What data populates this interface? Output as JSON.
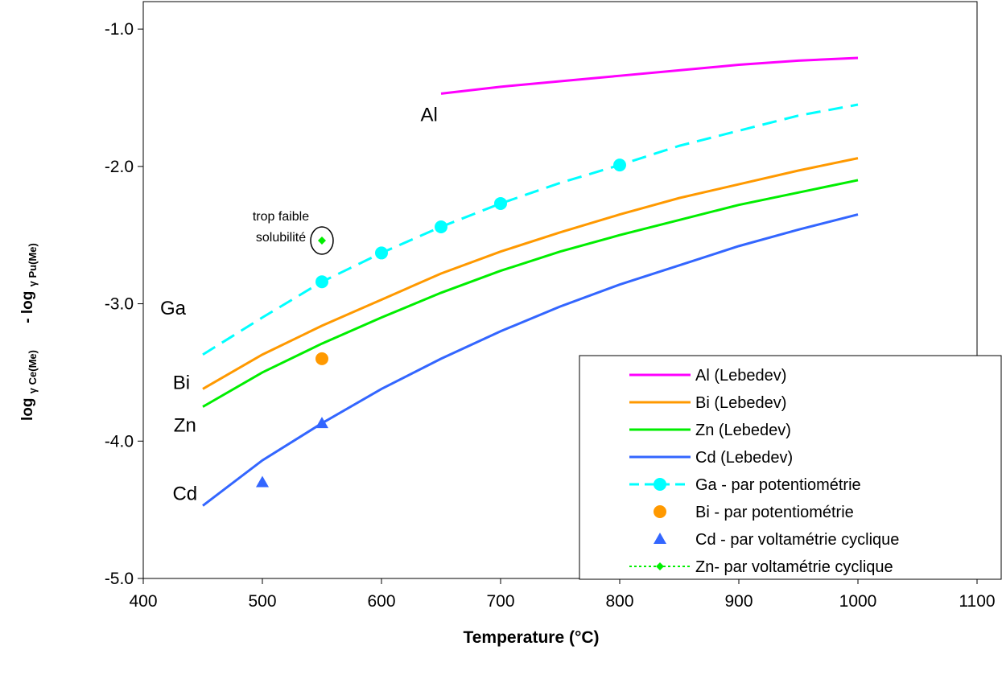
{
  "chart_data": {
    "type": "line",
    "xlabel": "Temperature (°C)",
    "ylabel": {
      "part1_main": "log",
      "part1_sub": "γ Ce(Me)",
      "part2_main": "- log",
      "part2_sub": "γ Pu(Me)"
    },
    "xlim": [
      400,
      1100
    ],
    "ylim": [
      -5.0,
      -0.8
    ],
    "x_ticks": [
      400,
      500,
      600,
      700,
      800,
      900,
      1000,
      1100
    ],
    "x_tick_labels": [
      "400",
      "500",
      "600",
      "700",
      "800",
      "900",
      "1000",
      "1100"
    ],
    "y_ticks": [
      -5.0,
      -4.0,
      -3.0,
      -2.0,
      -1.0
    ],
    "y_tick_labels": [
      "-5.0",
      "-4.0",
      "-3.0",
      "-2.0",
      "-1.0"
    ],
    "grid": false,
    "legend_position": "bottom-right",
    "series": [
      {
        "name": "Al (Lebedev)",
        "color": "#ff00ff",
        "style": "line",
        "x": [
          650,
          700,
          750,
          800,
          850,
          900,
          950,
          1000
        ],
        "y": [
          -1.47,
          -1.42,
          -1.38,
          -1.34,
          -1.3,
          -1.26,
          -1.23,
          -1.21
        ]
      },
      {
        "name": "Bi (Lebedev)",
        "color": "#ff9900",
        "style": "line",
        "x": [
          450,
          500,
          550,
          600,
          650,
          700,
          750,
          800,
          850,
          900,
          950,
          1000
        ],
        "y": [
          -3.62,
          -3.37,
          -3.16,
          -2.97,
          -2.78,
          -2.62,
          -2.48,
          -2.35,
          -2.23,
          -2.13,
          -2.03,
          -1.94
        ]
      },
      {
        "name": "Zn (Lebedev)",
        "color": "#00ee00",
        "style": "line",
        "x": [
          450,
          500,
          550,
          600,
          650,
          700,
          750,
          800,
          850,
          900,
          950,
          1000
        ],
        "y": [
          -3.75,
          -3.5,
          -3.29,
          -3.1,
          -2.92,
          -2.76,
          -2.62,
          -2.5,
          -2.39,
          -2.28,
          -2.19,
          -2.1
        ]
      },
      {
        "name": "Cd (Lebedev)",
        "color": "#3366ff",
        "style": "line",
        "x": [
          450,
          500,
          550,
          600,
          650,
          700,
          750,
          800,
          850,
          900,
          950,
          1000
        ],
        "y": [
          -4.47,
          -4.14,
          -3.87,
          -3.62,
          -3.4,
          -3.2,
          -3.02,
          -2.86,
          -2.72,
          -2.58,
          -2.46,
          -2.35
        ]
      },
      {
        "name": "Ga - par potentiométrie",
        "color": "#00ffff",
        "style": "dashed-line-markers",
        "marker": "circle",
        "x": [
          450,
          500,
          550,
          600,
          650,
          700,
          750,
          800,
          850,
          900,
          950,
          1000
        ],
        "y": [
          -3.37,
          -3.1,
          -2.84,
          -2.63,
          -2.44,
          -2.27,
          -2.12,
          -1.99,
          -1.85,
          -1.74,
          -1.63,
          -1.55
        ],
        "marker_x": [
          550,
          600,
          650,
          700,
          800
        ],
        "marker_y": [
          -2.84,
          -2.63,
          -2.44,
          -2.27,
          -1.99
        ]
      },
      {
        "name": "Bi - par potentiométrie",
        "color": "#ff9900",
        "style": "markers",
        "marker": "circle",
        "x": [
          550
        ],
        "y": [
          -3.4
        ]
      },
      {
        "name": "Cd - par voltamétrie cyclique",
        "color": "#3366ff",
        "style": "markers",
        "marker": "triangle",
        "x": [
          500,
          550
        ],
        "y": [
          -4.3,
          -3.87
        ]
      },
      {
        "name": "Zn- par voltamétrie cyclique",
        "color": "#00ee00",
        "style": "dotted-markers",
        "marker": "diamond",
        "x": [
          550
        ],
        "y": [
          -2.54
        ]
      }
    ],
    "inline_labels": [
      {
        "text": "Al",
        "x": 640,
        "y": -1.67
      },
      {
        "text": "Ga",
        "x": 425,
        "y": -3.08
      },
      {
        "text": "Bi",
        "x": 432,
        "y": -3.62
      },
      {
        "text": "Zn",
        "x": 435,
        "y": -3.93
      },
      {
        "text": "Cd",
        "x": 435,
        "y": -4.43
      }
    ],
    "annotation": {
      "lines": [
        "trop faible",
        "solubilité"
      ],
      "point_x": 550,
      "point_y": -2.54
    }
  }
}
